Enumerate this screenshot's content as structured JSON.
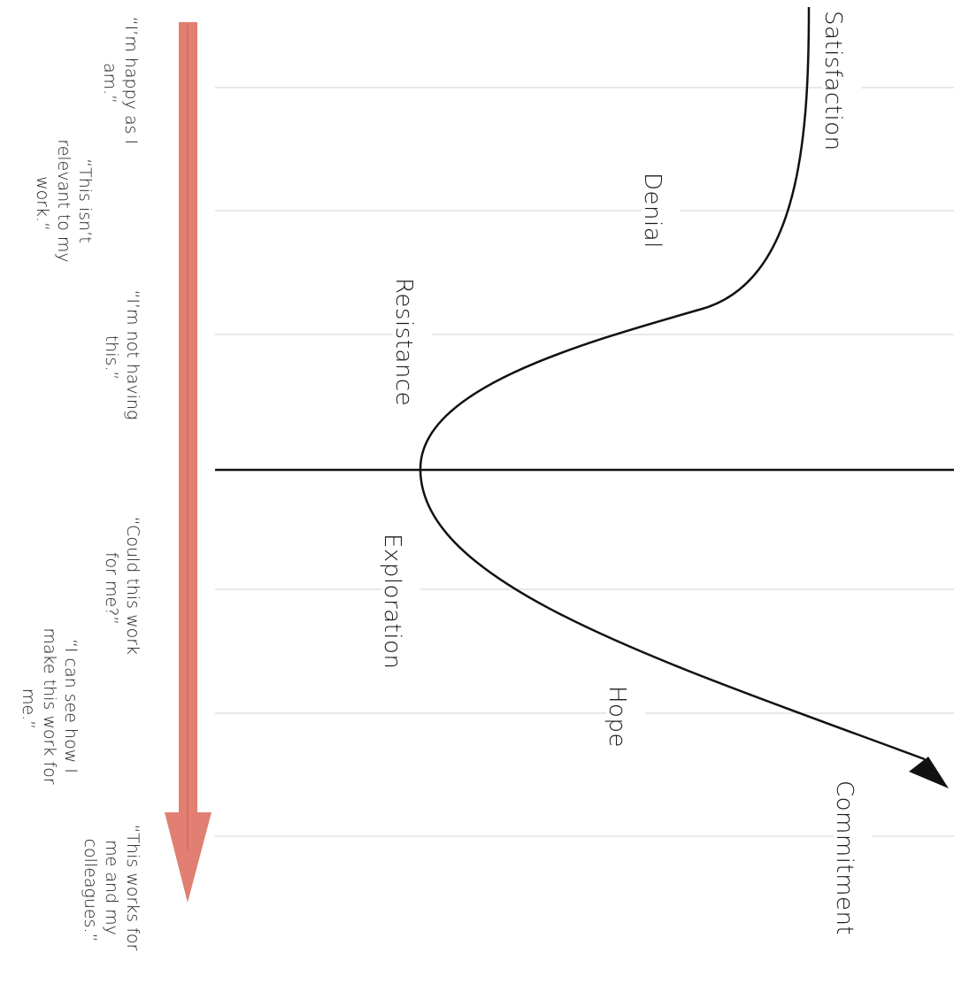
{
  "stages": [
    "Satisfaction",
    "Denial",
    "Resistance",
    "Exploration",
    "Hope",
    "Commitment"
  ],
  "quotes": [
    [
      "“I’m happy as I",
      "am.”"
    ],
    [
      "“This isn’t",
      "relevant to my",
      "work.”"
    ],
    [
      "“I’m not having",
      "this.”"
    ],
    [
      "“Could this work",
      "for me?”"
    ],
    [
      "“I can see how I",
      "make this work for",
      "me.”"
    ],
    [
      "“This works for",
      "me and my",
      "colleagues.”"
    ]
  ],
  "colors": {
    "arrow": "#e07f72",
    "arrow_centerline": "#d46a5c",
    "curve": "#111111",
    "gridline": "#e8e8e8",
    "baseline": "#111111"
  }
}
